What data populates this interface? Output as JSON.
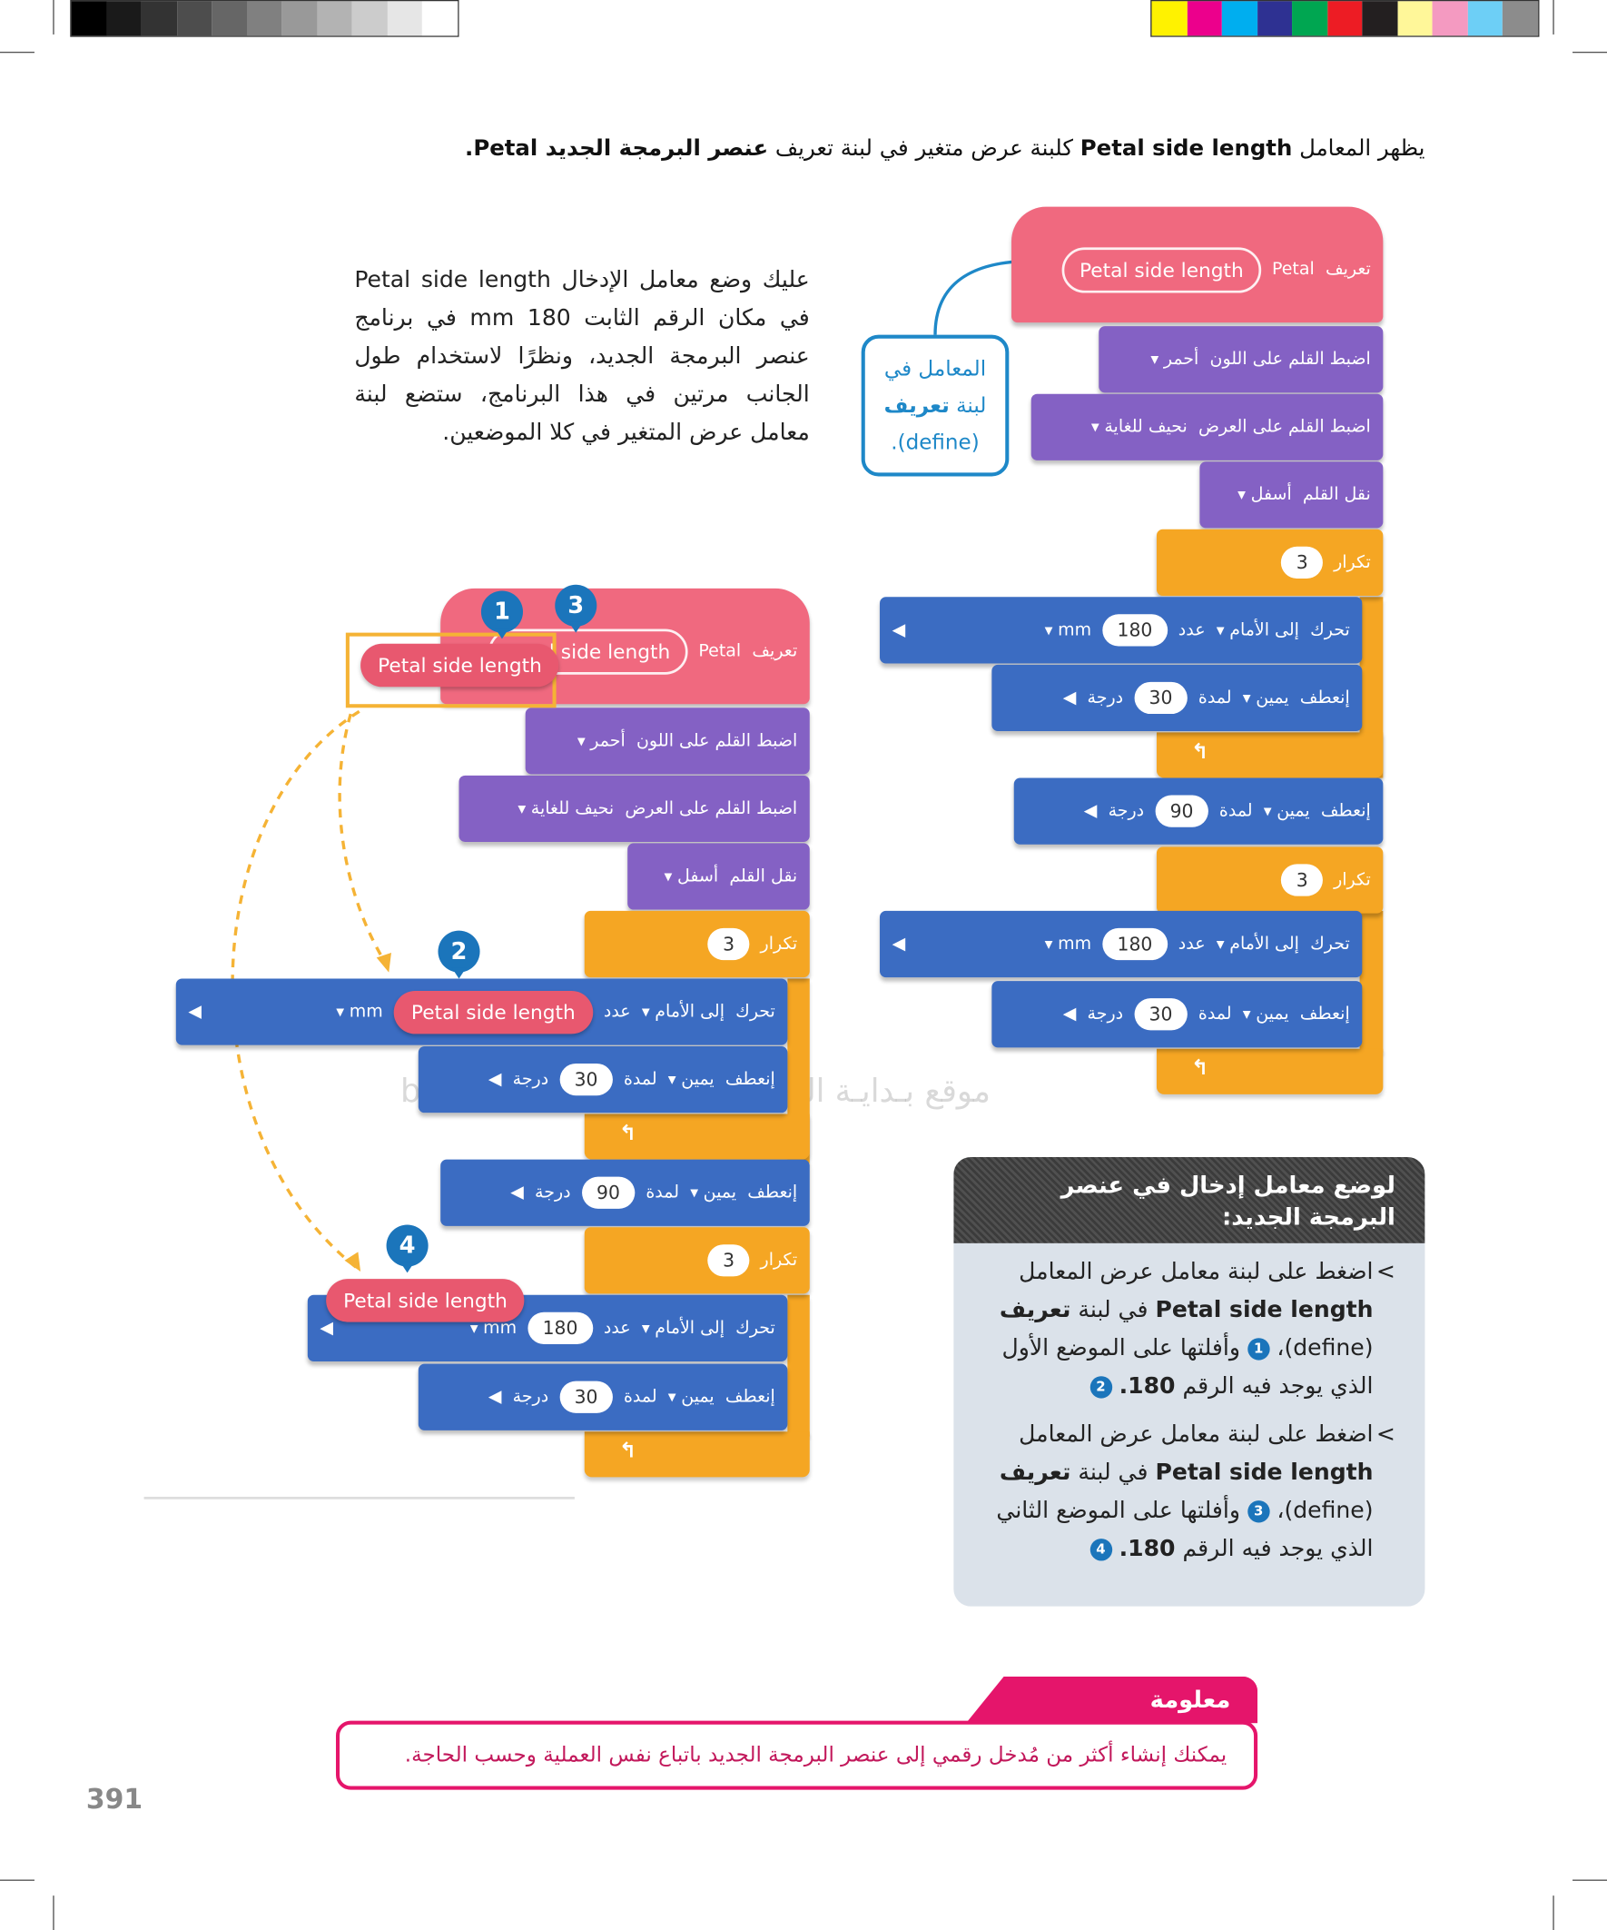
{
  "intro": {
    "t1": "يظهر المعامل",
    "b1": "Petal side length",
    "t2": "كلبنة عرض متغير في لبنة تعريف",
    "b2": "عنصر البرمجة الجديد Petal."
  },
  "paragraph": "عليك وضع معامل الإدخال Petal side length في مكان الرقم الثابت 180 mm في برنامج عنصر البرمجة الجديد، ونظرًا لاستخدام طول الجانب مرتين في هذا البرنامج، ستضع لبنة معامل عرض المتغير في كلا الموضعين.",
  "callout": {
    "line1": "المعامل في",
    "line2a": "لبنة",
    "line2b": "تعريف",
    "line3": "(define)."
  },
  "right_script": {
    "blocks": [
      [
        "تعريف",
        "Petal",
        "Petal side length"
      ],
      [
        "اضبط القلم على اللون",
        "أحمر"
      ],
      [
        "اضبط القلم على العرض",
        "نحيف للغاية"
      ],
      [
        "نقل القلم",
        "أسفل"
      ],
      [
        "تكرار",
        3
      ],
      [
        "تحرك",
        "إلى الأمام",
        "عدد",
        180,
        "mm"
      ],
      [
        "إنعطف",
        "يمين",
        "لمدة",
        30,
        "درجة"
      ],
      [
        "إنعطف",
        "يمين",
        "لمدة",
        90,
        "درجة"
      ],
      [
        "تكرار",
        3
      ],
      [
        "تحرك",
        "إلى الأمام",
        "عدد",
        180,
        "mm"
      ],
      [
        "إنعطف",
        "يمين",
        "لمدة",
        30,
        "درجة"
      ]
    ]
  },
  "left_script": {
    "blocks": [
      [
        "تعريف",
        "Petal",
        "Petal side length"
      ],
      [
        "اضبط القلم على اللون",
        "أحمر"
      ],
      [
        "اضبط القلم على العرض",
        "نحيف للغاية"
      ],
      [
        "نقل القلم",
        "أسفل"
      ],
      [
        "تكرار",
        3
      ],
      [
        "تحرك",
        "إلى الأمام",
        "عدد",
        "Petal side length",
        "mm"
      ],
      [
        "إنعطف",
        "يمين",
        "لمدة",
        30,
        "درجة"
      ],
      [
        "إنعطف",
        "يمين",
        "لمدة",
        90,
        "درجة"
      ],
      [
        "تكرار",
        3
      ],
      [
        "تحرك",
        "إلى الأمام",
        "عدد",
        180,
        "mm"
      ],
      [
        "إنعطف",
        "يمين",
        "لمدة",
        30,
        "درجة"
      ]
    ],
    "dragged": [
      "Petal side length",
      "Petal side length"
    ],
    "badges": [
      1,
      2,
      3,
      4
    ]
  },
  "watermark": "موقع بـدايـة التعليمي | beadaya.com",
  "instructions": {
    "title": "لوضع معامل إدخال في عنصر البرمجة الجديد:",
    "steps": [
      {
        "t1": "اضغط على لبنة معامل عرض المعامل",
        "b1": "Petal side length",
        "t2": "في لبنة",
        "b2": "تعريف",
        "t3": "(define)،",
        "n1": 1,
        "t4": "وأفلتها على الموضع الأول الذي يوجد فيه الرقم",
        "b3": "180.",
        "n2": 2
      },
      {
        "t1": "اضغط على لبنة معامل عرض المعامل",
        "b1": "Petal side length",
        "t2": "في لبنة",
        "b2": "تعريف",
        "t3": "(define)،",
        "n1": 3,
        "t4": "وأفلتها على الموضع الثاني الذي يوجد فيه الرقم",
        "b3": "180.",
        "n2": 4
      }
    ]
  },
  "info": {
    "title": "معلومة",
    "text": "يمكنك إنشاء أكثر من مُدخل رقمي إلى عنصر البرمجة الجديد باتباع نفس العملية وحسب الحاجة."
  },
  "page_number": 391
}
